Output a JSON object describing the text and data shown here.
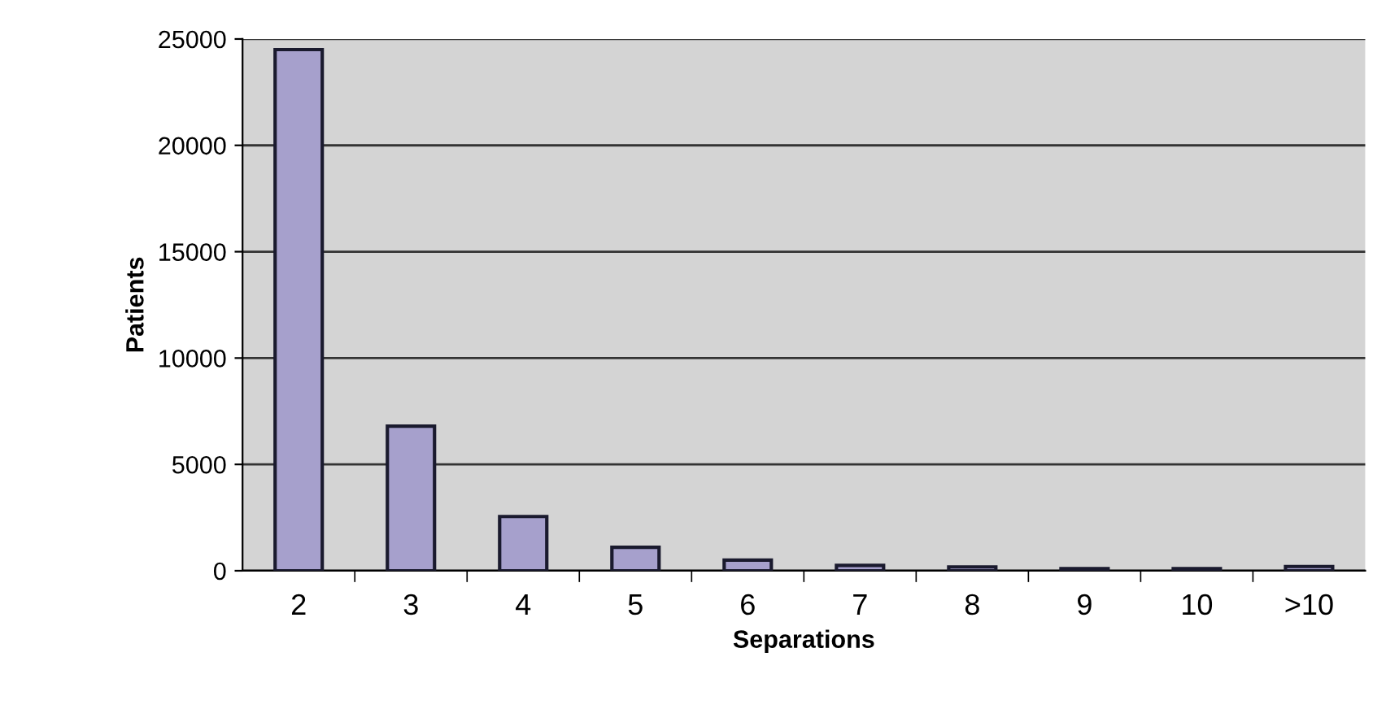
{
  "chart_data": {
    "type": "bar",
    "xlabel": "Separations",
    "ylabel": "Patients",
    "categories": [
      "2",
      "3",
      "4",
      "5",
      "6",
      "7",
      "8",
      "9",
      "10",
      ">10"
    ],
    "values": [
      24500,
      6800,
      2550,
      1100,
      500,
      250,
      180,
      100,
      100,
      200
    ],
    "color": "#a6a0cc",
    "ylim": [
      0,
      25000
    ],
    "yticks": [
      0,
      5000,
      10000,
      15000,
      20000,
      25000
    ],
    "grid": "y"
  }
}
